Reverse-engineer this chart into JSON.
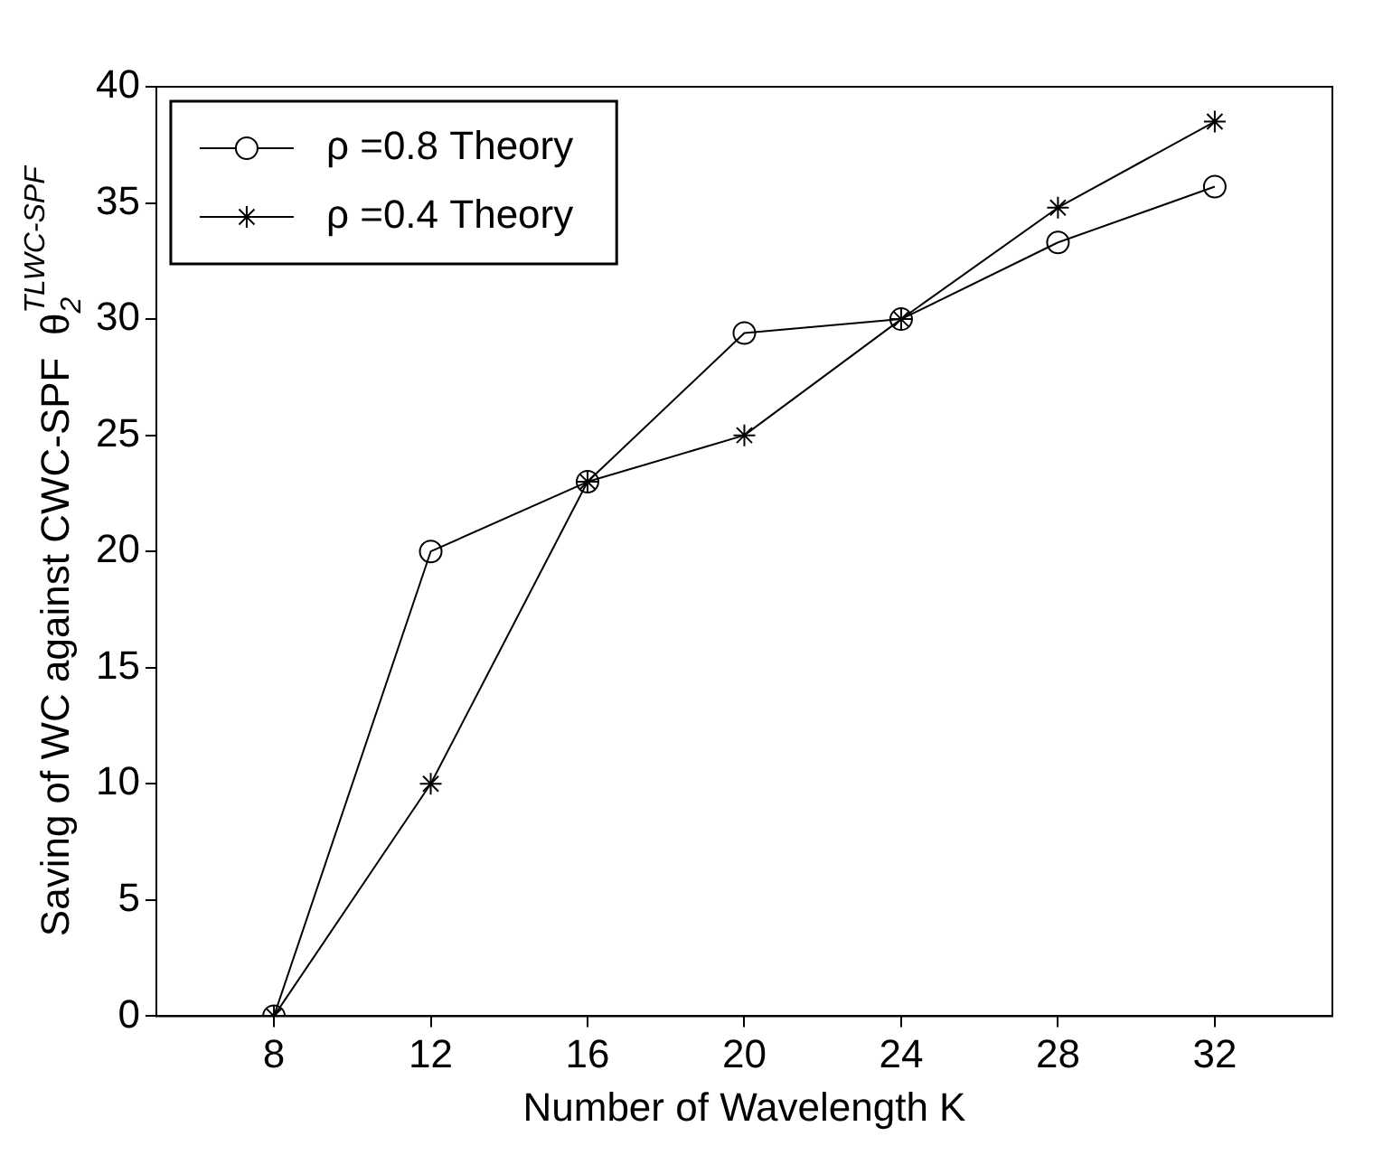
{
  "chart_data": {
    "type": "line",
    "xlabel": "Number of Wavelength K",
    "ylabel": "Saving of WC against CWC-SPF  θ$_{2}$$^{TLWC-SPF}$",
    "x": [
      8,
      12,
      16,
      20,
      24,
      28,
      32
    ],
    "series": [
      {
        "name": "ρ =0.8 Theory",
        "color": "#000000",
        "marker": "circle",
        "values": [
          0,
          20,
          23,
          29.4,
          30,
          33.3,
          35.7
        ]
      },
      {
        "name": "ρ =0.4 Theory",
        "color": "#000000",
        "marker": "cross",
        "values": [
          0,
          10,
          23,
          25,
          30,
          34.8,
          38.5
        ]
      }
    ],
    "xlim": [
      5,
      35
    ],
    "xticks": [
      8,
      12,
      16,
      20,
      24,
      28,
      32
    ],
    "ylim": [
      0,
      40
    ],
    "yticks": [
      0,
      5,
      10,
      15,
      20,
      25,
      30,
      35,
      40
    ],
    "grid": false,
    "legend": "top left",
    "line_style": "solid"
  }
}
